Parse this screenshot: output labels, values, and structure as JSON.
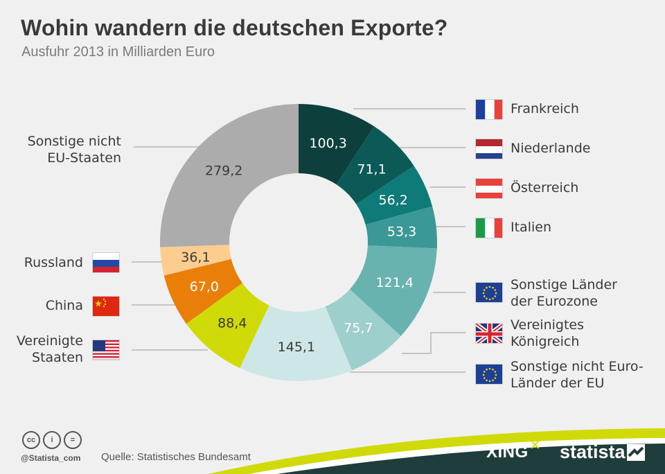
{
  "header": {
    "title": "Wohin wandern die deutschen Exporte?",
    "subtitle": "Ausfuhr 2013 in Milliarden Euro"
  },
  "chart_data": {
    "type": "donut",
    "unit": "Milliarden Euro",
    "slices": [
      {
        "label": "Frankreich",
        "value": 100.3,
        "value_label": "100,3",
        "color": "#0d403d",
        "text_color": "#ffffff",
        "flag": "france-flag"
      },
      {
        "label": "Niederlande",
        "value": 71.1,
        "value_label": "71,1",
        "color": "#0b5a58",
        "text_color": "#ffffff",
        "flag": "netherlands-flag"
      },
      {
        "label": "Österreich",
        "value": 56.2,
        "value_label": "56,2",
        "color": "#0e7b78",
        "text_color": "#ffffff",
        "flag": "austria-flag"
      },
      {
        "label": "Italien",
        "value": 53.3,
        "value_label": "53,3",
        "color": "#3a9896",
        "text_color": "#ffffff",
        "flag": "italy-flag"
      },
      {
        "label": "Sonstige Länder der Eurozone",
        "value": 121.4,
        "value_label": "121,4",
        "color": "#68b2b0",
        "text_color": "#ffffff",
        "flag": "eu-flag"
      },
      {
        "label": "Vereinigtes Königreich",
        "value": 75.7,
        "value_label": "75,7",
        "color": "#9dcfcd",
        "text_color": "#ffffff",
        "flag": "uk-flag"
      },
      {
        "label": "Sonstige nicht Euro-Länder der EU",
        "value": 145.1,
        "value_label": "145,1",
        "color": "#cde7e6",
        "text_color": "#3a3a3a",
        "flag": "eu-flag"
      },
      {
        "label": "Vereinigte Staaten",
        "value": 88.4,
        "value_label": "88,4",
        "color": "#cfda08",
        "text_color": "#3a3a3a",
        "flag": "usa-flag"
      },
      {
        "label": "China",
        "value": 67.0,
        "value_label": "67,0",
        "color": "#e97e08",
        "text_color": "#ffffff",
        "flag": "china-flag"
      },
      {
        "label": "Russland",
        "value": 36.1,
        "value_label": "36,1",
        "color": "#fdcc8f",
        "text_color": "#3a3a3a",
        "flag": "russia-flag"
      },
      {
        "label": "Sonstige nicht EU-Staaten",
        "value": 279.2,
        "value_label": "279,2",
        "color": "#acacac",
        "text_color": "#3a3a3a",
        "flag": ""
      }
    ]
  },
  "legend": {
    "frankreich": "Frankreich",
    "niederlande": "Niederlande",
    "oesterreich": "Österreich",
    "italien": "Italien",
    "eurozone_1": "Sonstige Länder",
    "eurozone_2": "der Eurozone",
    "uk_1": "Vereinigtes",
    "uk_2": "Königreich",
    "noneuro_1": "Sonstige nicht Euro-",
    "noneuro_2": "Länder der EU",
    "sonstige_1": "Sonstige nicht",
    "sonstige_2": "EU-Staaten",
    "russland": "Russland",
    "china": "China",
    "usa_1": "Vereinigte",
    "usa_2": "Staaten"
  },
  "footer": {
    "credit": "@Statista_com",
    "source": "Quelle: Statistisches Bundesamt",
    "xing": "XING",
    "statista": "statista"
  }
}
